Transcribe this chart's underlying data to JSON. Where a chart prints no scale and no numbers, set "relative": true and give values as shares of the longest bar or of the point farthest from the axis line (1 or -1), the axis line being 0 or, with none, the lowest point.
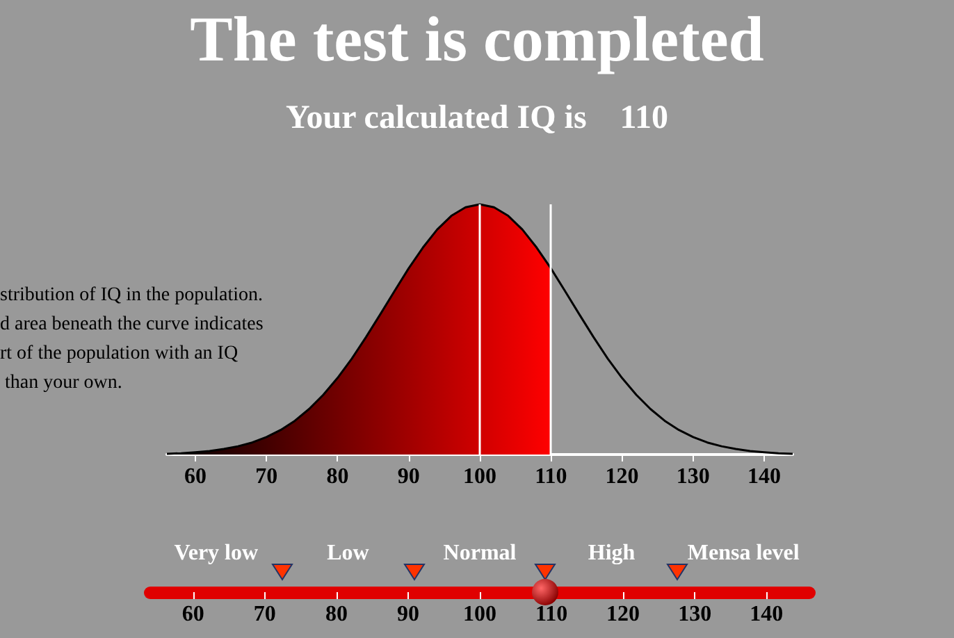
{
  "chart_data": {
    "type": "area",
    "title": "The test is completed",
    "subtitle": "Your calculated IQ is    110",
    "relative": true,
    "xlim": [
      56,
      144
    ],
    "xticks": [
      60,
      70,
      80,
      90,
      100,
      110,
      120,
      130,
      140
    ],
    "x2lim": [
      54,
      146
    ],
    "x2ticks": [
      60,
      70,
      80,
      90,
      100,
      110,
      120,
      130,
      140
    ],
    "annotations": [
      "stribution of IQ in the population.\nd area beneath the curve indicates\nrt of the population with an IQ\n than your own.",
      "Very low",
      "Low",
      "Normal",
      "High",
      "Mensa level"
    ],
    "series": [
      {
        "type": "area",
        "color": "#ff0000",
        "x": [
          56,
          58,
          60,
          62,
          64,
          66,
          68,
          70,
          72,
          74,
          76,
          78,
          80,
          82,
          84,
          86,
          88,
          90,
          92,
          94,
          96,
          98,
          100,
          102,
          104,
          106,
          108,
          110
        ],
        "values": [
          0.003,
          0.005,
          0.009,
          0.014,
          0.022,
          0.033,
          0.048,
          0.07,
          0.098,
          0.135,
          0.182,
          0.239,
          0.306,
          0.383,
          0.469,
          0.56,
          0.653,
          0.744,
          0.827,
          0.899,
          0.954,
          0.988,
          1,
          0.988,
          0.954,
          0.899,
          0.827,
          0.744
        ]
      },
      {
        "type": "line",
        "color": "#000000",
        "x": [
          56,
          58,
          60,
          62,
          64,
          66,
          68,
          70,
          72,
          74,
          76,
          78,
          80,
          82,
          84,
          86,
          88,
          90,
          92,
          94,
          96,
          98,
          100,
          102,
          104,
          106,
          108,
          110,
          112,
          114,
          116,
          118,
          120,
          122,
          124,
          126,
          128,
          130,
          132,
          134,
          136,
          138,
          140,
          142,
          144
        ],
        "values": [
          0.003,
          0.005,
          0.009,
          0.014,
          0.022,
          0.033,
          0.048,
          0.07,
          0.098,
          0.135,
          0.182,
          0.239,
          0.306,
          0.383,
          0.469,
          0.56,
          0.653,
          0.744,
          0.827,
          0.899,
          0.954,
          0.988,
          1,
          0.988,
          0.954,
          0.899,
          0.827,
          0.744,
          0.653,
          0.56,
          0.469,
          0.383,
          0.306,
          0.239,
          0.182,
          0.135,
          0.098,
          0.07,
          0.048,
          0.033,
          0.022,
          0.014,
          0.009,
          0.005,
          0.003
        ]
      }
    ],
    "ref_lines": [
      {
        "axis": "x",
        "value": 100,
        "color": "#ffffff"
      },
      {
        "axis": "x",
        "value": 110,
        "color": "#ffffff"
      }
    ]
  }
}
